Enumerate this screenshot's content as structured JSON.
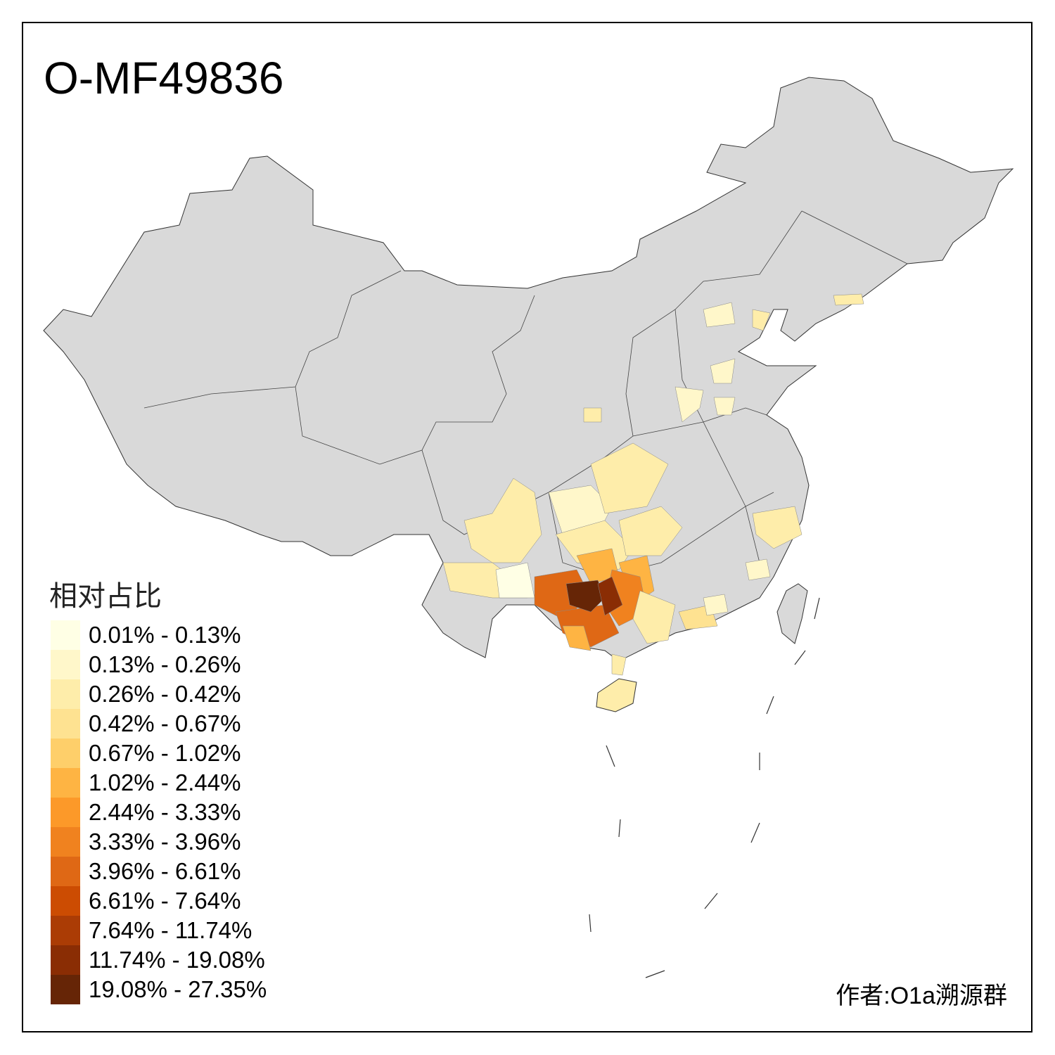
{
  "title": "O-MF49836",
  "legend": {
    "title": "相对占比",
    "items": [
      {
        "label": "0.01% - 0.13%",
        "color": "#FFFFE5"
      },
      {
        "label": "0.13% - 0.26%",
        "color": "#FFF7CA"
      },
      {
        "label": "0.26% - 0.42%",
        "color": "#FEEDAA"
      },
      {
        "label": "0.42% - 0.67%",
        "color": "#FEE291"
      },
      {
        "label": "0.67% - 1.02%",
        "color": "#FECF6A"
      },
      {
        "label": "1.02% - 2.44%",
        "color": "#FEB443"
      },
      {
        "label": "2.44% - 3.33%",
        "color": "#FC9929"
      },
      {
        "label": "3.33% - 3.96%",
        "color": "#F0821F"
      },
      {
        "label": "3.96% - 6.61%",
        "color": "#DF6815"
      },
      {
        "label": "6.61% - 7.64%",
        "color": "#CC4C02"
      },
      {
        "label": "7.64% - 11.74%",
        "color": "#AB3C05"
      },
      {
        "label": "11.74% - 19.08%",
        "color": "#8A2D04"
      },
      {
        "label": "19.08% - 27.35%",
        "color": "#662506"
      }
    ]
  },
  "no_data_color": "#D9D9D9",
  "author": "作者:O1a溯源群"
}
